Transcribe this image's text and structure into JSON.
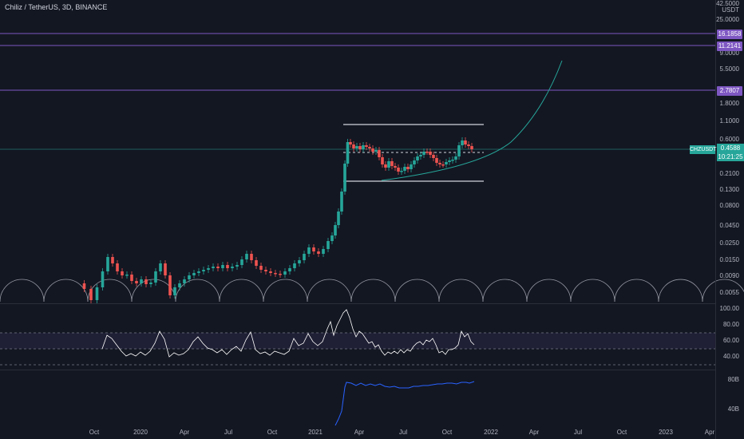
{
  "header": {
    "title": "Chiliz / TetherUS, 3D, BINANCE"
  },
  "price_axis": {
    "ticks": [
      "42.5000",
      "USDT",
      "25.0000",
      "9.0000",
      "5.5000",
      "1.8000",
      "1.1000",
      "0.6000",
      "0.2100",
      "0.1300",
      "0.0800",
      "0.0450",
      "0.0250",
      "0.0150",
      "0.0090",
      "0.0055"
    ]
  },
  "levels": [
    {
      "label": "16.1858",
      "color": "#7e57c2"
    },
    {
      "label": "11.2141",
      "color": "#7e57c2"
    },
    {
      "label": "2.7807",
      "color": "#7e57c2"
    }
  ],
  "current_price": {
    "symbol": "CHZUSDT",
    "price": "0.4588",
    "countdown": "10:21:25",
    "color": "#26a69a"
  },
  "rsi": {
    "ticks": [
      "100.00",
      "80.00",
      "60.00",
      "40.00"
    ],
    "upper": 70,
    "lower": 30,
    "line_color": "#ffffff"
  },
  "indicator2": {
    "ticks": [
      "80B",
      "40B"
    ],
    "line_color": "#2962ff"
  },
  "time_axis": {
    "ticks": [
      "Oct",
      "2020",
      "Apr",
      "Jul",
      "Oct",
      "2021",
      "Apr",
      "Jul",
      "Oct",
      "2022",
      "Apr",
      "Jul",
      "Oct",
      "2023",
      "Apr"
    ]
  },
  "colors": {
    "up": "#26a69a",
    "down": "#ef5350",
    "background": "#131722",
    "grid": "#2a2e39"
  }
}
